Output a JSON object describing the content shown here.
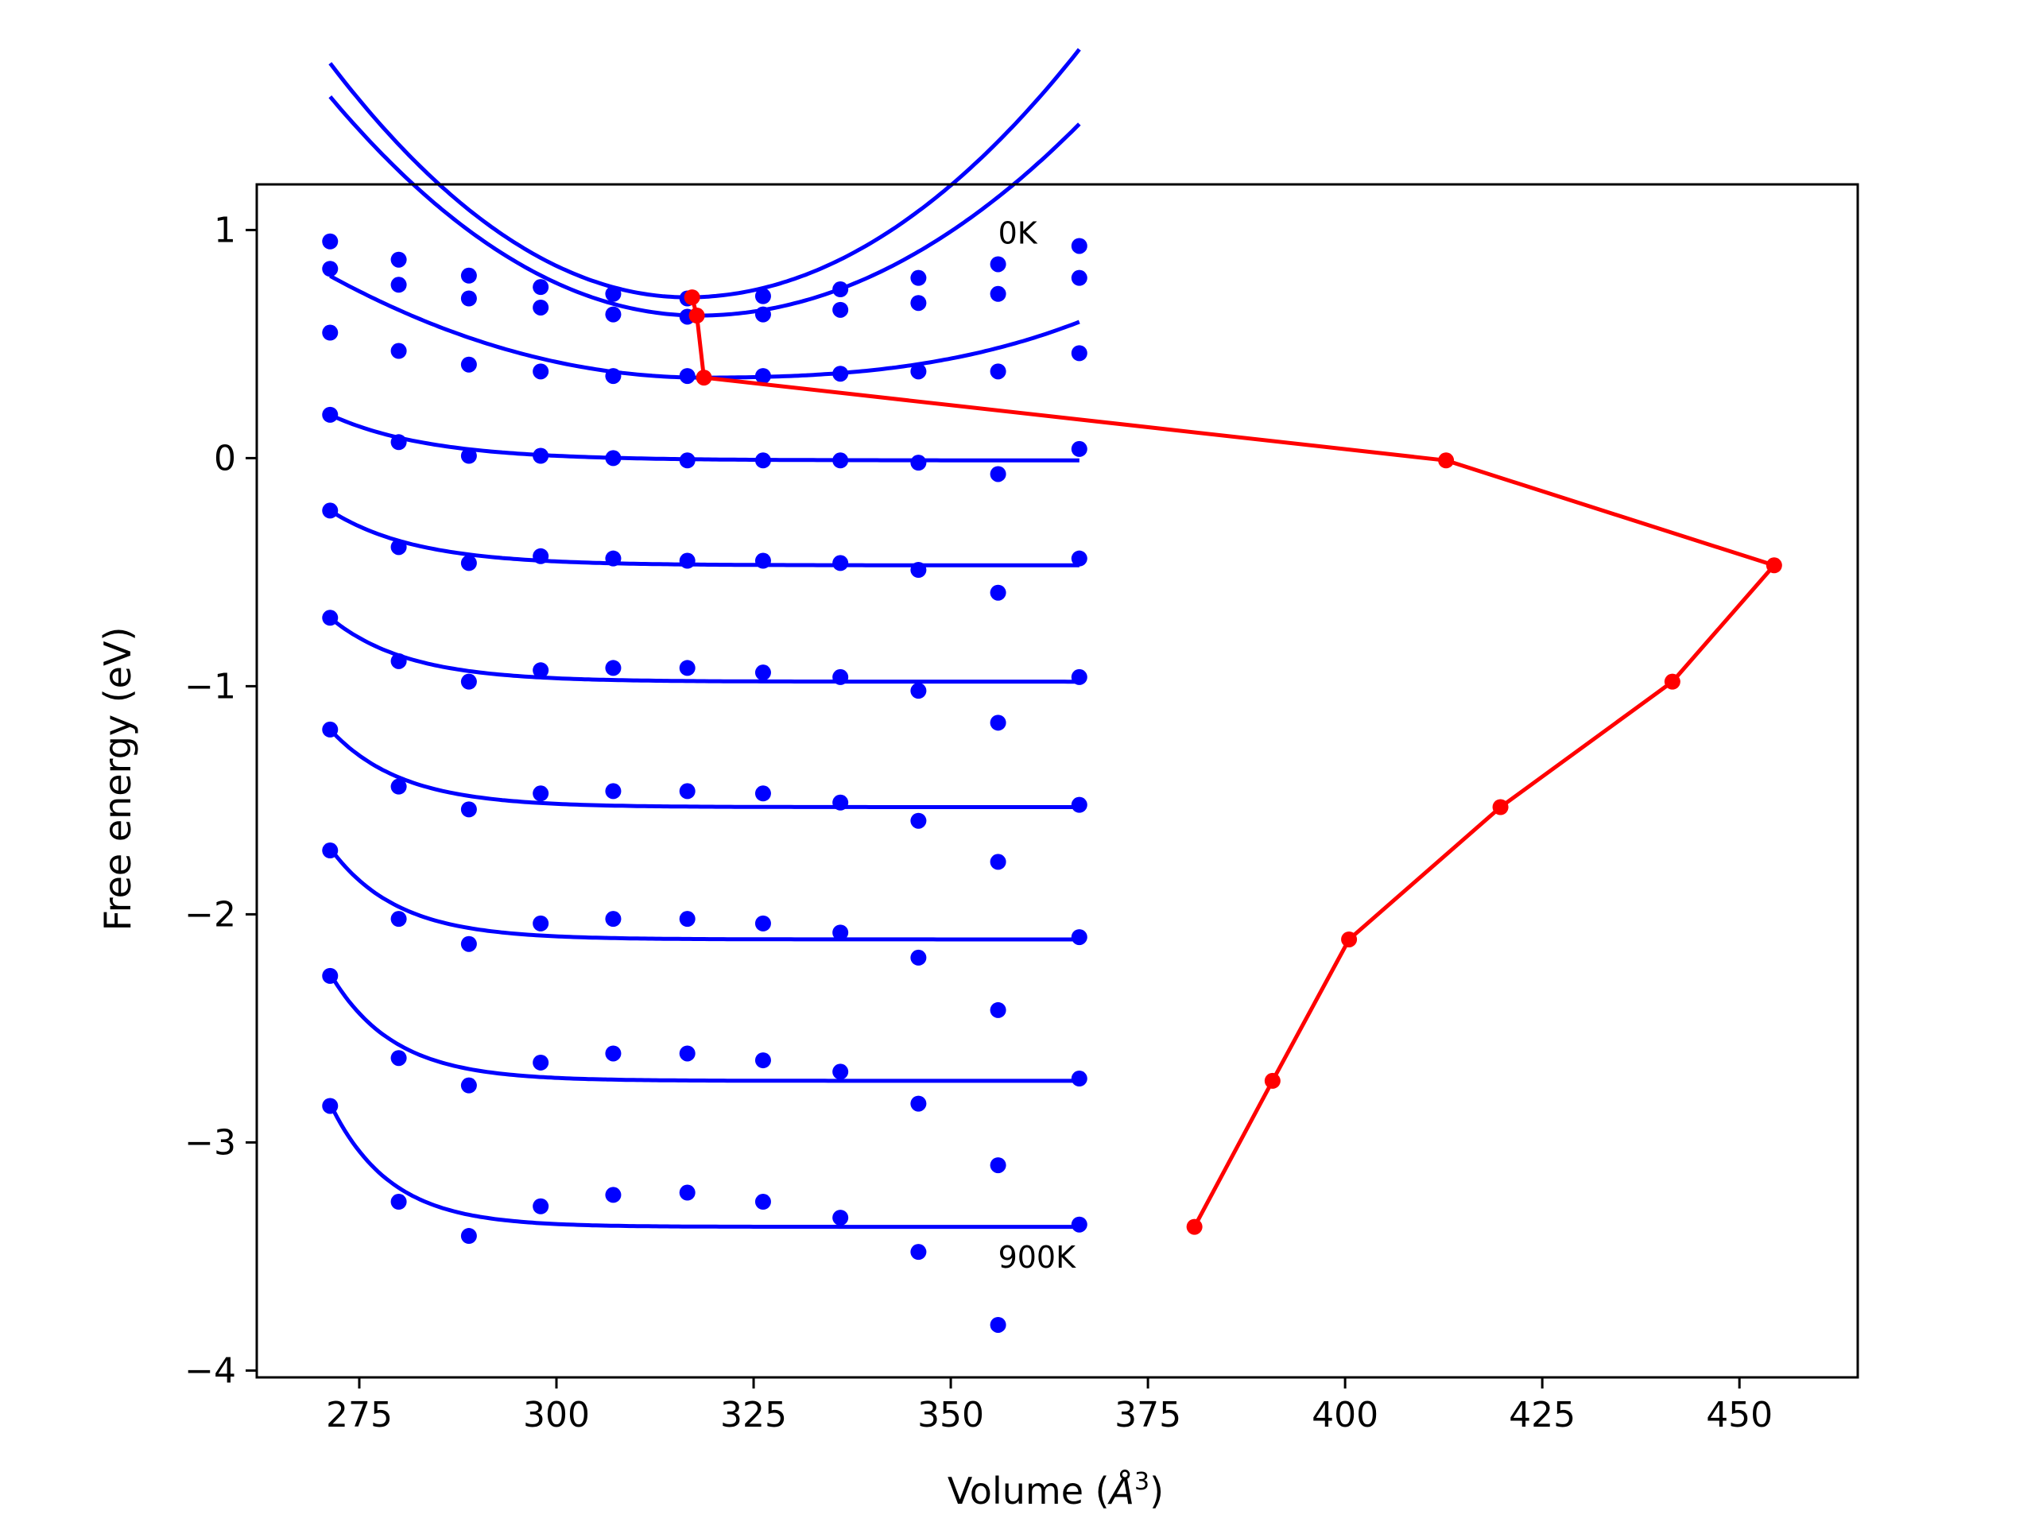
{
  "chart_data": {
    "type": "scatter",
    "xlabel": "Volume (",
    "xlabel_unit": "Å",
    "xlabel_sup": "3",
    "xlabel_close": ")",
    "ylabel": "Free energy (eV)",
    "xlim": [
      262,
      465
    ],
    "ylim": [
      -4.03,
      1.2
    ],
    "xticks": [
      275,
      300,
      325,
      350,
      375,
      400,
      425,
      450
    ],
    "yticks": [
      1,
      0,
      -1,
      -2,
      -3,
      -4
    ],
    "ytick_labels": [
      "1",
      "0",
      "−1",
      "−2",
      "−3",
      "−4"
    ],
    "annotations": [
      {
        "text": "0K",
        "x": 356,
        "y": 0.99
      },
      {
        "text": "900K",
        "x": 356,
        "y": -3.5
      }
    ],
    "colors": {
      "points": "#0000ff",
      "fit": "#0000ff",
      "minimum_path": "#ff0000",
      "frame": "#000000"
    },
    "volumes": [
      271.3,
      280.0,
      288.9,
      298.0,
      307.2,
      316.6,
      326.2,
      336.0,
      345.9,
      356.0,
      366.3
    ],
    "series": [
      {
        "values": [
          0.95,
          0.87,
          0.8,
          0.75,
          0.72,
          0.7,
          0.71,
          0.74,
          0.79,
          0.85,
          0.93
        ],
        "fit": {
          "min_v": 316.6,
          "min_e": 0.705,
          "a_left": 0.0005,
          "a_right": 0.00044,
          "cubic": 0
        }
      },
      {
        "values": [
          0.83,
          0.76,
          0.7,
          0.66,
          0.63,
          0.62,
          0.63,
          0.65,
          0.68,
          0.72,
          0.79
        ],
        "fit": {
          "min_v": 318.0,
          "min_e": 0.625,
          "a_left": 0.00044,
          "a_right": 0.00036,
          "cubic": 0
        }
      },
      {
        "values": [
          0.55,
          0.47,
          0.41,
          0.38,
          0.36,
          0.36,
          0.36,
          0.37,
          0.38,
          0.38,
          0.46
        ],
        "fit": {
          "min_v": 318.5,
          "min_e": 0.353,
          "a_left": 0.0002,
          "a_right": 4e-05,
          "cubic": 1.4e-06
        }
      },
      {
        "values": [
          0.19,
          0.07,
          0.01,
          0.01,
          0.0,
          -0.01,
          -0.01,
          -0.01,
          -0.02,
          -0.07,
          0.04
        ],
        "fit": {
          "asym": -0.01,
          "amp": 0.2,
          "decay": 0.08
        }
      },
      {
        "values": [
          -0.23,
          -0.39,
          -0.46,
          -0.43,
          -0.44,
          -0.45,
          -0.45,
          -0.46,
          -0.49,
          -0.59,
          -0.44
        ],
        "fit": {
          "asym": -0.47,
          "amp": 0.24,
          "decay": 0.092
        }
      },
      {
        "values": [
          -0.7,
          -0.89,
          -0.98,
          -0.93,
          -0.92,
          -0.92,
          -0.94,
          -0.96,
          -1.02,
          -1.16,
          -0.96
        ],
        "fit": {
          "asym": -0.98,
          "amp": 0.28,
          "decay": 0.102
        }
      },
      {
        "values": [
          -1.19,
          -1.44,
          -1.54,
          -1.47,
          -1.46,
          -1.46,
          -1.47,
          -1.51,
          -1.59,
          -1.77,
          -1.52
        ],
        "fit": {
          "asym": -1.53,
          "amp": 0.34,
          "decay": 0.11
        }
      },
      {
        "values": [
          -1.72,
          -2.02,
          -2.13,
          -2.04,
          -2.02,
          -2.02,
          -2.04,
          -2.08,
          -2.19,
          -2.42,
          -2.1
        ],
        "fit": {
          "asym": -2.11,
          "amp": 0.4,
          "decay": 0.118
        }
      },
      {
        "values": [
          -2.27,
          -2.63,
          -2.75,
          -2.65,
          -2.61,
          -2.61,
          -2.64,
          -2.69,
          -2.83,
          -3.1,
          -2.72
        ],
        "fit": {
          "asym": -2.73,
          "amp": 0.47,
          "decay": 0.125
        }
      },
      {
        "values": [
          -2.84,
          -3.26,
          -3.41,
          -3.28,
          -3.23,
          -3.22,
          -3.26,
          -3.33,
          -3.48,
          -3.8,
          -3.36
        ],
        "fit": {
          "asym": -3.37,
          "amp": 0.54,
          "decay": 0.132
        }
      }
    ],
    "minimum_path": {
      "x": [
        317.2,
        317.8,
        318.7,
        412.8,
        454.4,
        441.5,
        419.7,
        400.5,
        390.8,
        380.9
      ],
      "y": [
        0.705,
        0.625,
        0.353,
        -0.01,
        -0.47,
        -0.98,
        -1.53,
        -2.11,
        -2.73,
        -3.37
      ]
    }
  }
}
